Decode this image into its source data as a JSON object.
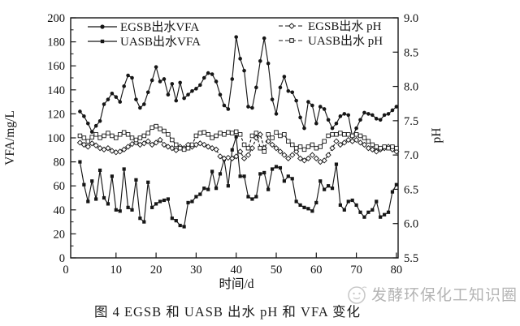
{
  "caption": "图 4  EGSB 和 UASB 出水 pH 和 VFA 变化",
  "watermark": {
    "text": "发酵环保化工知识圈",
    "icon": "circle-emblem-icon",
    "color": "#b4b4b4"
  },
  "colors": {
    "line": "#161616",
    "background": "#ffffff",
    "tick_label": "#111111"
  },
  "chart_data": {
    "type": "line",
    "title": "图 4  EGSB 和 UASB 出水 pH 和 VFA 变化",
    "xlabel": "时间/d",
    "ylabel_left": "VFA/mg/L",
    "ylabel_right": "pH",
    "x_range": [
      0,
      80
    ],
    "ylim_left": [
      0,
      200
    ],
    "ylim_right": [
      5.5,
      9.0
    ],
    "grid": "off",
    "legend_positions": [
      "top-left-inside",
      "top-right-inside"
    ],
    "x_ticks": [
      0,
      10,
      20,
      30,
      40,
      50,
      60,
      70,
      80
    ],
    "y_left_ticks": [
      0,
      20,
      40,
      60,
      80,
      100,
      120,
      140,
      160,
      180,
      200
    ],
    "y_right_ticks": [
      "5.5",
      "6.0",
      "6.5",
      "7.0",
      "7.5",
      "8.0",
      "8.5",
      "9.0"
    ],
    "x": [
      1,
      2,
      3,
      4,
      5,
      6,
      7,
      8,
      9,
      10,
      11,
      12,
      13,
      14,
      15,
      16,
      17,
      18,
      19,
      20,
      21,
      22,
      23,
      24,
      25,
      26,
      27,
      28,
      29,
      30,
      31,
      32,
      33,
      34,
      35,
      36,
      37,
      38,
      39,
      40,
      41,
      42,
      43,
      44,
      45,
      46,
      47,
      48,
      49,
      50,
      51,
      52,
      53,
      54,
      55,
      56,
      57,
      58,
      59,
      60,
      61,
      62,
      63,
      64,
      65,
      66,
      67,
      68,
      69,
      70,
      71,
      72,
      73,
      74,
      75,
      76,
      77,
      78,
      79,
      80
    ],
    "series": [
      {
        "id": "egsb-vfa",
        "name": "EGSB出水VFA",
        "axis": "left",
        "marker": "filled-circle",
        "line": "solid",
        "values": [
          122,
          118,
          112,
          105,
          110,
          114,
          128,
          132,
          137,
          134,
          130,
          143,
          152,
          150,
          132,
          125,
          128,
          138,
          148,
          159,
          147,
          149,
          136,
          145,
          131,
          146,
          133,
          136,
          139,
          141,
          144,
          150,
          154,
          153,
          147,
          136,
          127,
          124,
          149,
          184,
          166,
          156,
          126,
          125,
          142,
          164,
          183,
          162,
          132,
          120,
          142,
          151,
          139,
          138,
          131,
          117,
          108,
          130,
          127,
          112,
          126,
          124,
          115,
          108,
          112,
          118,
          120,
          119,
          101,
          108,
          115,
          121,
          120,
          119,
          116,
          115,
          119,
          120,
          123,
          126
        ]
      },
      {
        "id": "uasb-vfa",
        "name": "UASB出水VFA",
        "axis": "left",
        "marker": "filled-square",
        "line": "solid",
        "values": [
          80,
          61,
          47,
          64,
          49,
          73,
          50,
          45,
          68,
          40,
          39,
          74,
          42,
          40,
          65,
          33,
          30,
          63,
          42,
          45,
          47,
          48,
          49,
          33,
          31,
          27,
          26,
          46,
          47,
          51,
          53,
          58,
          57,
          72,
          58,
          70,
          82,
          60,
          90,
          101,
          68,
          68,
          51,
          49,
          51,
          70,
          71,
          57,
          74,
          76,
          75,
          64,
          68,
          66,
          47,
          44,
          42,
          41,
          39,
          46,
          64,
          57,
          60,
          58,
          78,
          44,
          40,
          47,
          48,
          44,
          38,
          34,
          38,
          40,
          47,
          34,
          36,
          38,
          55,
          61
        ]
      },
      {
        "id": "egsb-ph",
        "name": "EGSB出水 pH",
        "axis": "right",
        "marker": "open-diamond",
        "line": "dashed",
        "values": [
          7.18,
          7.15,
          7.12,
          7.17,
          7.14,
          7.1,
          7.08,
          7.1,
          7.06,
          7.04,
          7.05,
          7.08,
          7.12,
          7.16,
          7.18,
          7.15,
          7.17,
          7.2,
          7.15,
          7.18,
          7.22,
          7.15,
          7.12,
          7.1,
          7.07,
          7.12,
          7.1,
          7.15,
          7.12,
          7.15,
          7.17,
          7.15,
          7.12,
          7.1,
          7.08,
          6.98,
          6.95,
          6.96,
          6.95,
          6.98,
          7.05,
          6.95,
          7.0,
          7.1,
          7.25,
          7.3,
          7.1,
          7.2,
          7.15,
          7.1,
          7.05,
          7.0,
          6.95,
          7.0,
          7.05,
          6.95,
          6.92,
          6.95,
          7.0,
          6.95,
          6.9,
          6.92,
          7.0,
          7.1,
          7.2,
          7.15,
          7.18,
          7.22,
          7.2,
          7.22,
          7.18,
          7.15,
          7.1,
          7.08,
          7.05,
          7.08,
          7.1,
          7.12,
          7.08,
          7.05
        ]
      },
      {
        "id": "uasb-ph",
        "name": "UASB出水 pH",
        "axis": "right",
        "marker": "open-square",
        "line": "dashed",
        "values": [
          7.28,
          7.25,
          7.2,
          7.26,
          7.3,
          7.25,
          7.28,
          7.32,
          7.28,
          7.25,
          7.3,
          7.33,
          7.3,
          7.25,
          7.22,
          7.25,
          7.28,
          7.32,
          7.4,
          7.42,
          7.38,
          7.35,
          7.3,
          7.22,
          7.15,
          7.1,
          7.08,
          7.1,
          7.15,
          7.28,
          7.32,
          7.33,
          7.3,
          7.25,
          7.28,
          7.32,
          7.3,
          7.33,
          7.32,
          7.34,
          7.3,
          7.15,
          7.1,
          7.28,
          7.32,
          7.1,
          7.05,
          7.3,
          7.25,
          7.33,
          7.28,
          7.3,
          7.2,
          7.15,
          7.1,
          7.12,
          7.08,
          7.12,
          7.15,
          7.1,
          7.12,
          7.2,
          7.28,
          7.3,
          7.3,
          7.32,
          7.3,
          7.3,
          7.28,
          7.3,
          7.28,
          7.25,
          7.2,
          7.15,
          7.12,
          7.1,
          7.12,
          7.1,
          7.12,
          7.1
        ]
      }
    ]
  }
}
